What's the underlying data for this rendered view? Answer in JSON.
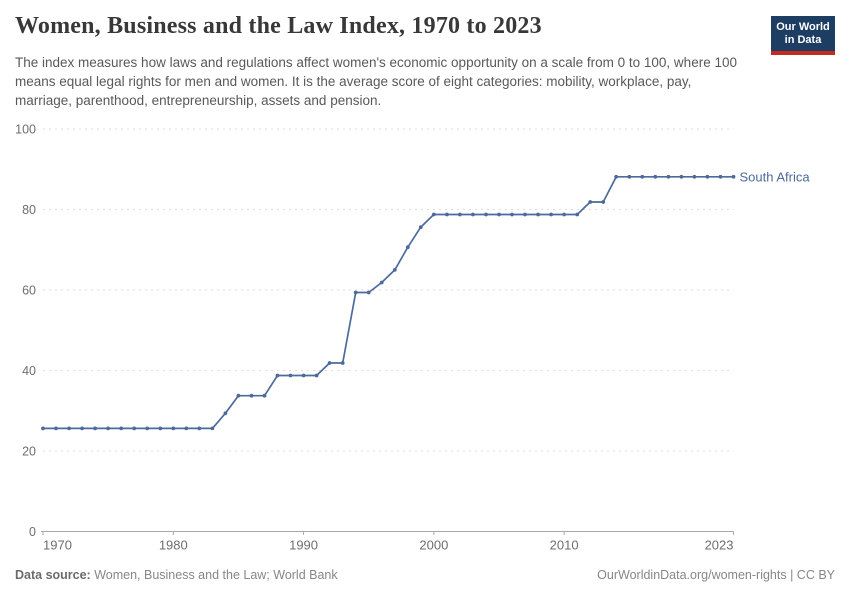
{
  "header": {
    "title": "Women, Business and the Law Index, 1970 to 2023",
    "subtitle": "The index measures how laws and regulations affect women's economic opportunity on a scale from 0 to 100, where 100 means equal legal rights for men and women. It is the average score of eight categories: mobility, workplace, pay, marriage, parenthood, entrepreneurship, assets and pension.",
    "logo": {
      "line1": "Our World",
      "line2": "in Data"
    }
  },
  "chart_data": {
    "type": "line",
    "title": "Women, Business and the Law Index, 1970 to 2023",
    "xlabel": "",
    "ylabel": "",
    "xlim": [
      1970,
      2023
    ],
    "ylim": [
      0,
      100
    ],
    "x_ticks": [
      1970,
      1980,
      1990,
      2000,
      2010,
      2023
    ],
    "y_ticks": [
      0,
      20,
      40,
      60,
      80,
      100
    ],
    "grid": "horizontal-dashed",
    "legend_position": "end-of-line-label",
    "series": [
      {
        "name": "South Africa",
        "color": "#4c6a9c",
        "x": [
          1970,
          1971,
          1972,
          1973,
          1974,
          1975,
          1976,
          1977,
          1978,
          1979,
          1980,
          1981,
          1982,
          1983,
          1984,
          1985,
          1986,
          1987,
          1988,
          1989,
          1990,
          1991,
          1992,
          1993,
          1994,
          1995,
          1996,
          1997,
          1998,
          1999,
          2000,
          2001,
          2002,
          2003,
          2004,
          2005,
          2006,
          2007,
          2008,
          2009,
          2010,
          2011,
          2012,
          2013,
          2014,
          2015,
          2016,
          2017,
          2018,
          2019,
          2020,
          2021,
          2022,
          2023
        ],
        "values": [
          25.625,
          25.625,
          25.625,
          25.625,
          25.625,
          25.625,
          25.625,
          25.625,
          25.625,
          25.625,
          25.625,
          25.625,
          25.625,
          25.625,
          29.375,
          33.75,
          33.75,
          33.75,
          38.75,
          38.75,
          38.75,
          38.75,
          41.875,
          41.875,
          59.375,
          59.375,
          61.875,
          65,
          70.625,
          75.625,
          78.75,
          78.75,
          78.75,
          78.75,
          78.75,
          78.75,
          78.75,
          78.75,
          78.75,
          78.75,
          78.75,
          78.75,
          81.875,
          81.875,
          88.125,
          88.125,
          88.125,
          88.125,
          88.125,
          88.125,
          88.125,
          88.125,
          88.125,
          88.125
        ]
      }
    ]
  },
  "footer": {
    "source_label": "Data source:",
    "source_text": " Women, Business and the Law; World Bank",
    "credit": "OurWorldinData.org/women-rights | CC BY"
  },
  "colors": {
    "series": "#4c6a9c",
    "gridline": "#dedede",
    "axis": "#a8a8a8",
    "tick_label": "#6e6e6e",
    "logo_bg": "#1d3d63",
    "logo_stripe": "#c52a21"
  }
}
